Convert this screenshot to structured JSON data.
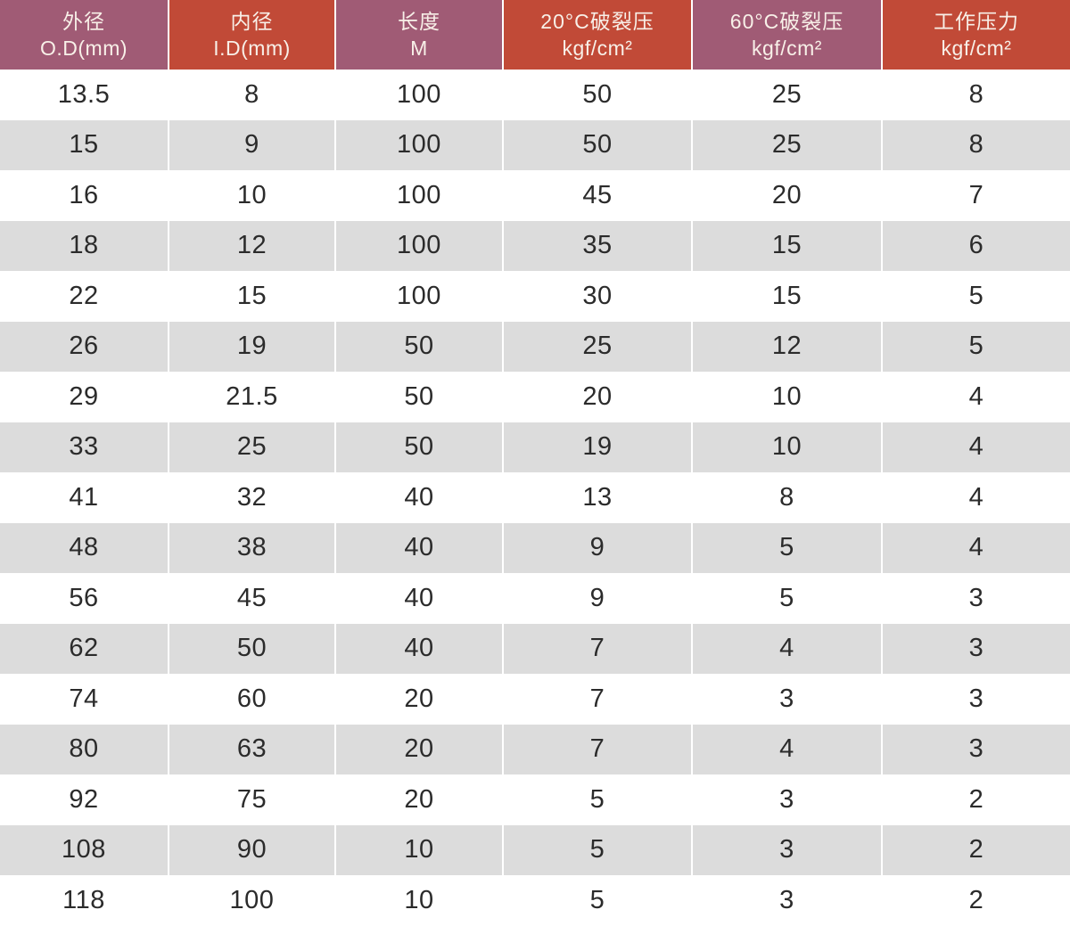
{
  "table": {
    "title": "hose-pressure-specification-table",
    "colors": {
      "header_purple": "#a05b75",
      "header_red": "#c14a37",
      "row_alt": "#dcdcdc",
      "row_base": "#ffffff",
      "header_text": "#f8f0e8",
      "cell_text": "#2b2b2b"
    },
    "columns": [
      {
        "line1": "外径",
        "line2": "O.D(mm)",
        "theme": "purple"
      },
      {
        "line1": "内径",
        "line2": "I.D(mm)",
        "theme": "red"
      },
      {
        "line1": "长度",
        "line2": "M",
        "theme": "purple"
      },
      {
        "line1": "20°C破裂压",
        "line2": "kgf/cm²",
        "theme": "red"
      },
      {
        "line1": "60°C破裂压",
        "line2": "kgf/cm²",
        "theme": "purple"
      },
      {
        "line1": "工作压力",
        "line2": "kgf/cm²",
        "theme": "red"
      }
    ],
    "rows": [
      [
        "13.5",
        "8",
        "100",
        "50",
        "25",
        "8"
      ],
      [
        "15",
        "9",
        "100",
        "50",
        "25",
        "8"
      ],
      [
        "16",
        "10",
        "100",
        "45",
        "20",
        "7"
      ],
      [
        "18",
        "12",
        "100",
        "35",
        "15",
        "6"
      ],
      [
        "22",
        "15",
        "100",
        "30",
        "15",
        "5"
      ],
      [
        "26",
        "19",
        "50",
        "25",
        "12",
        "5"
      ],
      [
        "29",
        "21.5",
        "50",
        "20",
        "10",
        "4"
      ],
      [
        "33",
        "25",
        "50",
        "19",
        "10",
        "4"
      ],
      [
        "41",
        "32",
        "40",
        "13",
        "8",
        "4"
      ],
      [
        "48",
        "38",
        "40",
        "9",
        "5",
        "4"
      ],
      [
        "56",
        "45",
        "40",
        "9",
        "5",
        "3"
      ],
      [
        "62",
        "50",
        "40",
        "7",
        "4",
        "3"
      ],
      [
        "74",
        "60",
        "20",
        "7",
        "3",
        "3"
      ],
      [
        "80",
        "63",
        "20",
        "7",
        "4",
        "3"
      ],
      [
        "92",
        "75",
        "20",
        "5",
        "3",
        "2"
      ],
      [
        "108",
        "90",
        "10",
        "5",
        "3",
        "2"
      ],
      [
        "118",
        "100",
        "10",
        "5",
        "3",
        "2"
      ]
    ]
  }
}
